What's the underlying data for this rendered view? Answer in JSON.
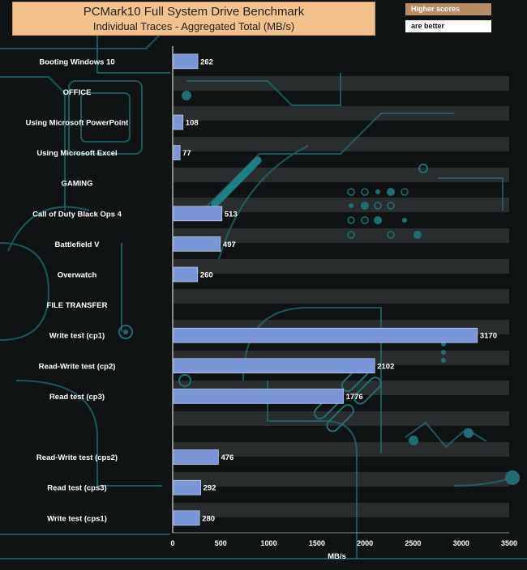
{
  "chart_data": {
    "type": "bar",
    "orientation": "horizontal",
    "title": "PCMark10 Full System Drive Benchmark",
    "subtitle": "Individual Traces - Aggregated Total (MB/s)",
    "xlabel": "MB/s",
    "xlim": [
      0,
      3500
    ],
    "xticks": [
      0,
      500,
      1000,
      1500,
      2000,
      2500,
      3000,
      3500
    ],
    "legend": [
      "Higher scores",
      "are better"
    ],
    "categories": [
      "Booting Windows 10",
      "OFFICE",
      "Using Microsoft PowerPoint",
      "Using Microsoft Excel",
      "GAMING",
      "Call of Duty Black Ops 4",
      "Battlefield V",
      "Overwatch",
      "FILE TRANSFER",
      "Write test (cp1)",
      "Read-Write test (cp2)",
      "Read test (cp3)",
      "",
      "Read-Write test (cps2)",
      "Read test (cps3)",
      "Write test (cps1)"
    ],
    "values": [
      262,
      null,
      108,
      77,
      null,
      513,
      497,
      260,
      null,
      3170,
      2102,
      1776,
      null,
      476,
      292,
      280
    ],
    "bar_color": "#7b96d6"
  }
}
